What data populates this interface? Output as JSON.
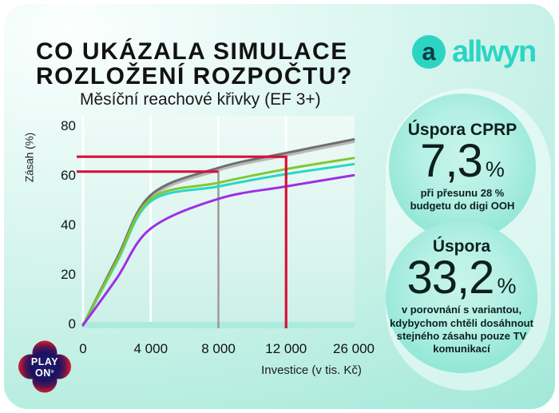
{
  "slide": {
    "title_line1": "CO UKÁZALA SIMULACE",
    "title_line2": "ROZLOŽENÍ ROZPOČTU?"
  },
  "brand": {
    "wordmark": "allwyn",
    "icon_letter": "a",
    "teal": "#2cd5c3",
    "dark": "#123c47"
  },
  "colors": {
    "card_mint": "#9de7d7",
    "red_annotation": "#d5113a",
    "gray_annotation": "#9b9b9b"
  },
  "chart_data": {
    "type": "line",
    "title": "Měsíční reachové křivky (EF 3+)",
    "xlabel": "Investice (v tis. Kč)",
    "ylabel": "Zásah (%)",
    "x_ticks": [
      {
        "label": "0",
        "pos": 0
      },
      {
        "label": "4 000",
        "pos": 0.25
      },
      {
        "label": "8 000",
        "pos": 0.5
      },
      {
        "label": "12 000",
        "pos": 0.75
      },
      {
        "label": "26 000",
        "pos": 1
      }
    ],
    "y_ticks": [
      0,
      20,
      40,
      60,
      80
    ],
    "ylim": [
      0,
      84
    ],
    "grid": "vertical-only",
    "grid_pos": [
      0,
      0.25,
      0.5,
      0.75
    ],
    "legend": "none",
    "x_points": [
      0,
      2000,
      4000,
      8000,
      12000,
      26000
    ],
    "x_points_pos": [
      0,
      0.125,
      0.25,
      0.5,
      0.75,
      1
    ],
    "series": [
      {
        "name": "reach-curve-gray-light",
        "color": "#b9b9b9",
        "values": [
          0,
          26.5,
          51.5,
          62.5,
          68.5,
          74
        ]
      },
      {
        "name": "reach-curve-gray-dark",
        "color": "#6f6f6f",
        "values": [
          0,
          27,
          52.5,
          63.5,
          69.5,
          75
        ]
      },
      {
        "name": "reach-curve-cyan",
        "color": "#2bd6c5",
        "values": [
          0,
          25.5,
          50,
          56,
          61,
          65
        ]
      },
      {
        "name": "reach-curve-green",
        "color": "#7fc832",
        "values": [
          0,
          26,
          51,
          57.5,
          63,
          67.5
        ]
      },
      {
        "name": "reach-curve-purple",
        "color": "#9c30e6",
        "values": [
          0,
          19,
          39,
          51,
          56,
          60.5
        ]
      }
    ],
    "annotations": {
      "red_color": "#d5113a",
      "gray_color": "#9b9b9b",
      "upper_red_y": 68,
      "upper_red_x_end": 0.75,
      "lower_red_y": 62,
      "lower_red_x_end": 0.5,
      "gray_vline_pos": 0.5,
      "gray_vline_top": 64,
      "red_vline_pos": 0.75
    }
  },
  "badges": [
    {
      "heading": "Úspora CPRP",
      "value": "7,3",
      "unit": "%",
      "note": "při přesunu 28 %\nbudgetu do digi OOH"
    },
    {
      "heading": "Úspora",
      "value": "33,2",
      "unit": "%",
      "note": "v porovnání s variantou,\nkdybychom chtěli dosáhnout\nstejného zásahu pouze TV\nkomunikací"
    }
  ],
  "footer_logo": {
    "line1": "PLAY",
    "line2": "ON",
    "reg": "®"
  }
}
